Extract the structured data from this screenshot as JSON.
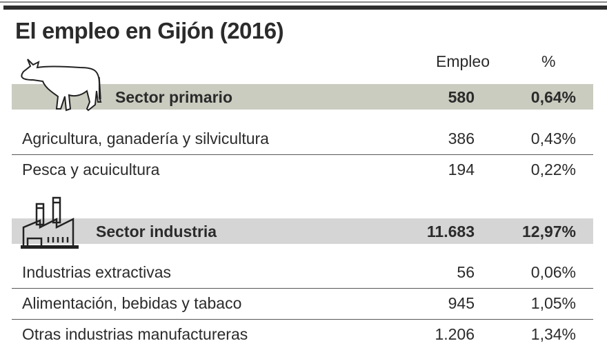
{
  "title": "El empleo en Gijón (2016)",
  "headers": {
    "empleo": "Empleo",
    "pct": "%"
  },
  "sections": [
    {
      "label": "Sector primario",
      "icon": "cow-icon",
      "empleo": "580",
      "pct": "0,64%",
      "color": "#c9ccbf",
      "rows": [
        {
          "name": "Agricultura, ganadería y silvicultura",
          "empleo": "386",
          "pct": "0,43%"
        },
        {
          "name": "Pesca y acuicultura",
          "empleo": "194",
          "pct": "0,22%"
        }
      ]
    },
    {
      "label": "Sector industria",
      "icon": "factory-icon",
      "empleo": "11.683",
      "pct": "12,97%",
      "color": "#d5d5d5",
      "rows": [
        {
          "name": "Industrias extractivas",
          "empleo": "56",
          "pct": "0,06%"
        },
        {
          "name": "Alimentación, bebidas y tabaco",
          "empleo": "945",
          "pct": "1,05%"
        },
        {
          "name": "Otras industrias manufactureras",
          "empleo": "1.206",
          "pct": "1,34%"
        }
      ]
    }
  ]
}
